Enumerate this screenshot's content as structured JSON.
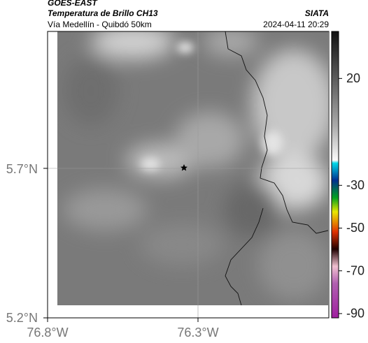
{
  "header": {
    "product": "GOES-EAST",
    "title": "Temperatura de Brillo CH13",
    "source": "SIATA",
    "subtitle": "Vía Medellín - Quibdó 50km",
    "timestamp": "2024-04-11 20:29"
  },
  "axes": {
    "lat_labels": [
      "5.7°N",
      "5.2°N"
    ],
    "lon_labels": [
      "76.8°W",
      "76.3°W"
    ]
  },
  "colorbar": {
    "range": [
      42,
      -92
    ],
    "ticks": [
      20,
      -30,
      -50,
      -70,
      -90
    ]
  }
}
